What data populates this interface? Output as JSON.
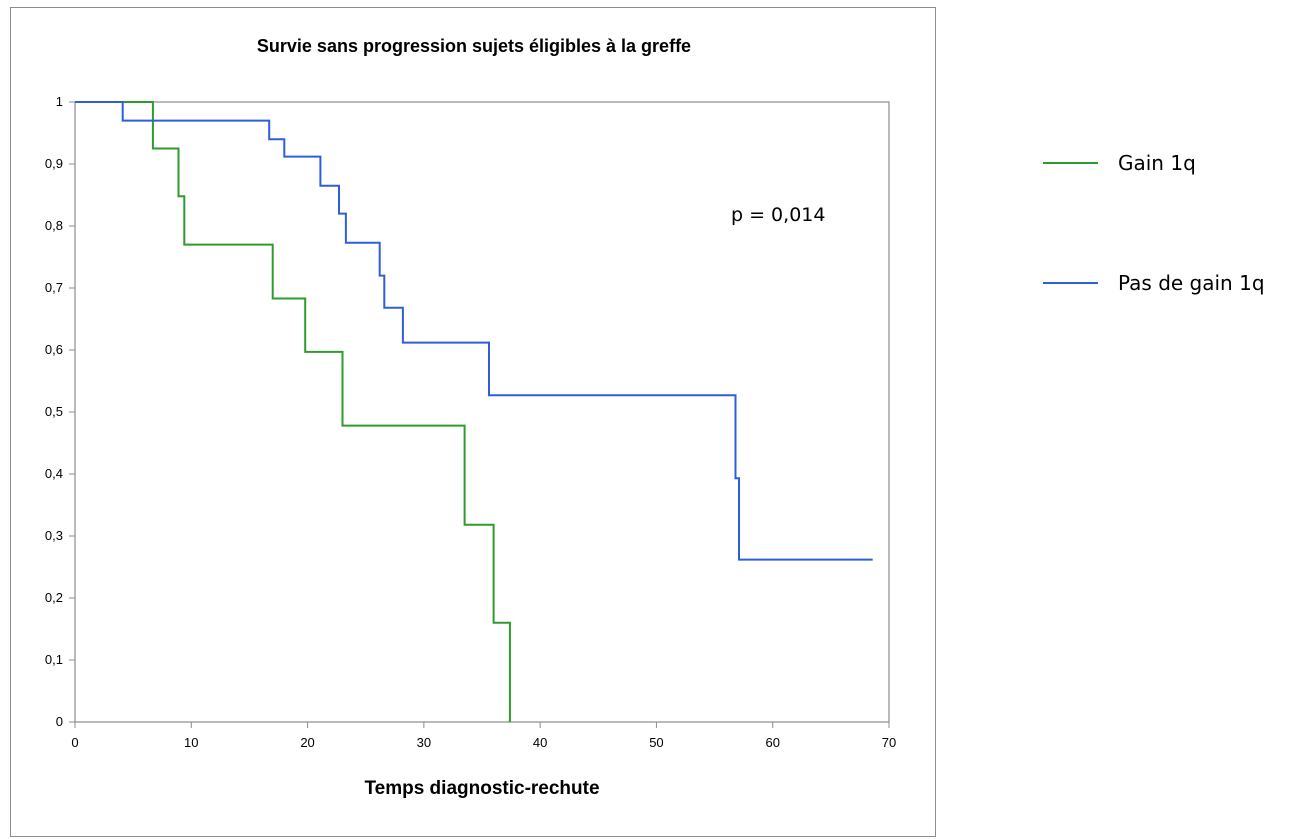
{
  "chart_data": {
    "type": "line",
    "title": "Survie sans progression  sujets éligibles à la greffe",
    "xlabel": "Temps diagnostic-rechute",
    "ylabel": "",
    "xlim": [
      0,
      70
    ],
    "ylim": [
      0,
      1
    ],
    "x_ticks": [
      "0",
      "10",
      "20",
      "30",
      "40",
      "50",
      "60",
      "70"
    ],
    "y_ticks": [
      "0",
      "0,1",
      "0,2",
      "0,3",
      "0,4",
      "0,5",
      "0,6",
      "0,7",
      "0,8",
      "0,9",
      "1"
    ],
    "grid": false,
    "legend_position": "right",
    "annotation": "p = 0,014",
    "step": true,
    "series": [
      {
        "name": "Gain 1q",
        "color": "#2e9b2e",
        "points": [
          [
            0,
            1.0
          ],
          [
            6.7,
            1.0
          ],
          [
            6.7,
            0.925
          ],
          [
            8.9,
            0.925
          ],
          [
            8.9,
            0.848
          ],
          [
            9.4,
            0.848
          ],
          [
            9.4,
            0.77
          ],
          [
            17.0,
            0.77
          ],
          [
            17.0,
            0.683
          ],
          [
            19.8,
            0.683
          ],
          [
            19.8,
            0.597
          ],
          [
            23.0,
            0.597
          ],
          [
            23.0,
            0.478
          ],
          [
            33.5,
            0.478
          ],
          [
            33.5,
            0.318
          ],
          [
            36.0,
            0.318
          ],
          [
            36.0,
            0.16
          ],
          [
            37.4,
            0.16
          ],
          [
            37.4,
            0.0
          ]
        ]
      },
      {
        "name": "Pas de gain 1q",
        "color": "#2f5fd8",
        "points": [
          [
            0,
            1.0
          ],
          [
            4.1,
            1.0
          ],
          [
            4.1,
            0.97
          ],
          [
            16.7,
            0.97
          ],
          [
            16.7,
            0.94
          ],
          [
            18.0,
            0.94
          ],
          [
            18.0,
            0.912
          ],
          [
            21.1,
            0.912
          ],
          [
            21.1,
            0.865
          ],
          [
            22.7,
            0.865
          ],
          [
            22.7,
            0.82
          ],
          [
            23.3,
            0.82
          ],
          [
            23.3,
            0.773
          ],
          [
            26.2,
            0.773
          ],
          [
            26.2,
            0.72
          ],
          [
            26.6,
            0.72
          ],
          [
            26.6,
            0.668
          ],
          [
            28.2,
            0.668
          ],
          [
            28.2,
            0.612
          ],
          [
            35.6,
            0.612
          ],
          [
            35.6,
            0.527
          ],
          [
            56.8,
            0.527
          ],
          [
            56.8,
            0.393
          ],
          [
            57.1,
            0.393
          ],
          [
            57.1,
            0.262
          ],
          [
            68.6,
            0.262
          ]
        ]
      }
    ]
  }
}
